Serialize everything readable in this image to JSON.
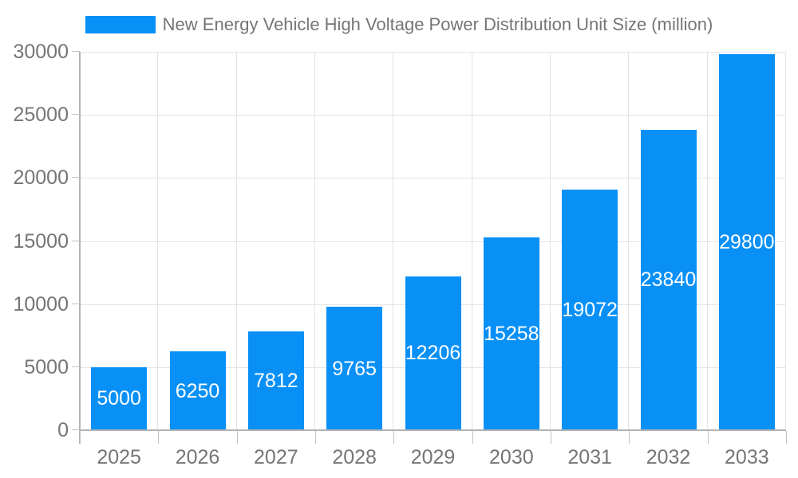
{
  "legend": {
    "label": "New Energy Vehicle High Voltage Power Distribution Unit Size (million)"
  },
  "chart_data": {
    "type": "bar",
    "title": "New Energy Vehicle High Voltage Power Distribution Unit Size (million)",
    "categories": [
      "2025",
      "2026",
      "2027",
      "2028",
      "2029",
      "2030",
      "2031",
      "2032",
      "2033"
    ],
    "values": [
      5000,
      6250,
      7812,
      9765,
      12206,
      15258,
      19072,
      23840,
      29800
    ],
    "bar_value_labels": [
      "5000",
      "6250",
      "7812",
      "9765",
      "12206",
      "15258",
      "19072",
      "23840",
      "29800"
    ],
    "series_name": "New Energy Vehicle High Voltage Power Distribution Unit Size (million)",
    "xlabel": "",
    "ylabel": "",
    "ylim": [
      0,
      30000
    ],
    "yticks": [
      0,
      5000,
      10000,
      15000,
      20000,
      25000,
      30000
    ],
    "grid": true,
    "legend_position": "top-center",
    "colors": {
      "bar": "#0990F7",
      "axis_text": "#757575",
      "title_text": "#757575",
      "bar_label_text": "#ffffff",
      "gridline": "#e3e3e3",
      "axis_line": "#b3b3b3",
      "tick": "#c2c2c2",
      "background": "#ffffff"
    }
  }
}
